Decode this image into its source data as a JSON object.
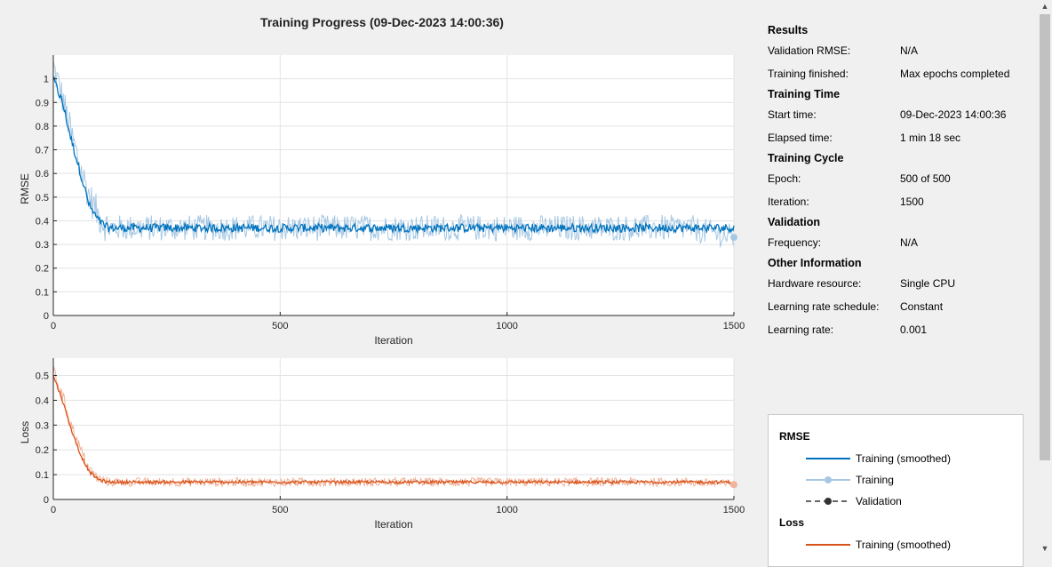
{
  "title": "Training Progress (09-Dec-2023 14:00:36)",
  "info": {
    "sections": [
      {
        "heading": "Results",
        "rows": [
          {
            "label": "Validation RMSE:",
            "value": "N/A"
          },
          {
            "label": "Training finished:",
            "value": "Max epochs completed"
          }
        ]
      },
      {
        "heading": "Training Time",
        "rows": [
          {
            "label": "Start time:",
            "value": "09-Dec-2023 14:00:36"
          },
          {
            "label": "Elapsed time:",
            "value": "1 min 18 sec"
          }
        ]
      },
      {
        "heading": "Training Cycle",
        "rows": [
          {
            "label": "Epoch:",
            "value": "500 of 500"
          },
          {
            "label": "Iteration:",
            "value": "1500"
          }
        ]
      },
      {
        "heading": "Validation",
        "rows": [
          {
            "label": "Frequency:",
            "value": "N/A"
          }
        ]
      },
      {
        "heading": "Other Information",
        "rows": [
          {
            "label": "Hardware resource:",
            "value": "Single CPU"
          },
          {
            "label": "Learning rate schedule:",
            "value": "Constant"
          },
          {
            "label": "Learning rate:",
            "value": "0.001"
          }
        ]
      }
    ]
  },
  "legend": {
    "rmse_heading": "RMSE",
    "loss_heading": "Loss",
    "training_smoothed": "Training (smoothed)",
    "training": "Training",
    "validation": "Validation"
  },
  "colors": {
    "rmse_smoothed": "#0072bd",
    "rmse_raw": "#a6c8e4",
    "loss_smoothed": "#d95319",
    "loss_raw": "#f0b49c"
  },
  "chart_data": [
    {
      "type": "line",
      "xlabel": "Iteration",
      "ylabel": "RMSE",
      "xlim": [
        0,
        1500
      ],
      "ylim": [
        0,
        1.1
      ],
      "xticks": [
        0,
        500,
        1000,
        1500
      ],
      "yticks": [
        0,
        0.1,
        0.2,
        0.3,
        0.4,
        0.5,
        0.6,
        0.7,
        0.8,
        0.9,
        1
      ],
      "grid": true,
      "series": [
        {
          "name": "Training (smoothed)",
          "x": [
            0,
            20,
            40,
            60,
            80,
            100,
            120,
            200,
            400,
            600,
            800,
            1000,
            1200,
            1400,
            1500
          ],
          "y": [
            1.0,
            0.9,
            0.74,
            0.6,
            0.46,
            0.4,
            0.37,
            0.37,
            0.37,
            0.37,
            0.37,
            0.37,
            0.37,
            0.37,
            0.37
          ]
        },
        {
          "name": "Training",
          "x": [
            0,
            20,
            40,
            60,
            80,
            100,
            120,
            200,
            400,
            600,
            800,
            1000,
            1200,
            1400,
            1500
          ],
          "y": [
            1.05,
            0.92,
            0.76,
            0.62,
            0.5,
            0.42,
            0.37,
            0.37,
            0.37,
            0.37,
            0.37,
            0.37,
            0.37,
            0.37,
            0.33
          ]
        }
      ]
    },
    {
      "type": "line",
      "xlabel": "Iteration",
      "ylabel": "Loss",
      "xlim": [
        0,
        1500
      ],
      "ylim": [
        0,
        0.57
      ],
      "xticks": [
        0,
        500,
        1000,
        1500
      ],
      "yticks": [
        0,
        0.1,
        0.2,
        0.3,
        0.4,
        0.5
      ],
      "grid": true,
      "series": [
        {
          "name": "Training (smoothed)",
          "x": [
            0,
            20,
            40,
            60,
            80,
            100,
            120,
            200,
            400,
            600,
            800,
            1000,
            1200,
            1400,
            1500
          ],
          "y": [
            0.5,
            0.4,
            0.28,
            0.18,
            0.11,
            0.08,
            0.07,
            0.07,
            0.07,
            0.07,
            0.07,
            0.07,
            0.07,
            0.07,
            0.07
          ]
        },
        {
          "name": "Training",
          "x": [
            0,
            20,
            40,
            60,
            80,
            100,
            120,
            200,
            400,
            600,
            800,
            1000,
            1200,
            1400,
            1500
          ],
          "y": [
            0.52,
            0.42,
            0.3,
            0.2,
            0.12,
            0.08,
            0.07,
            0.07,
            0.07,
            0.07,
            0.07,
            0.07,
            0.07,
            0.07,
            0.06
          ]
        }
      ]
    }
  ]
}
